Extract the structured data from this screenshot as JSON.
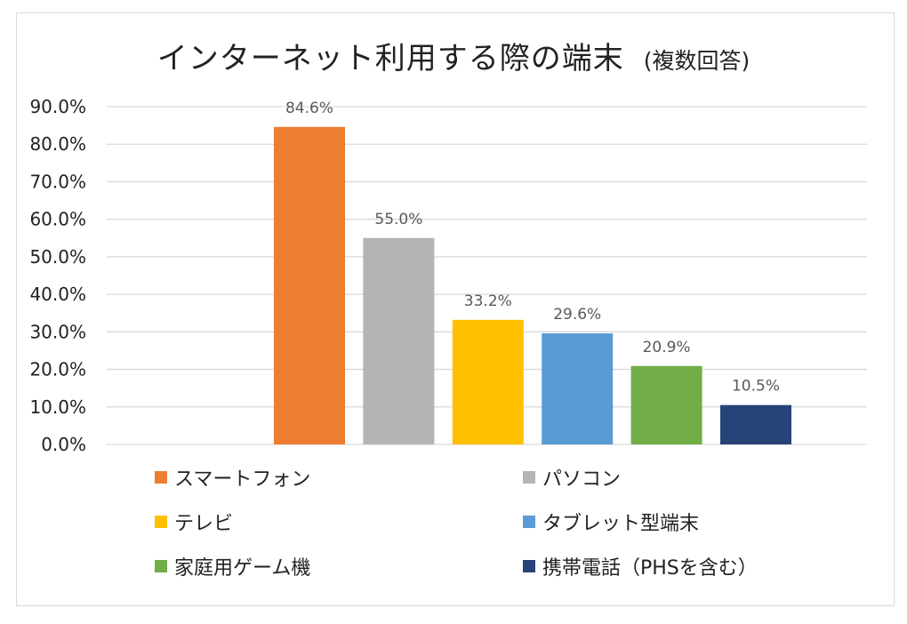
{
  "chart_data": {
    "type": "bar",
    "title": "インターネット利用する際の端末",
    "title_suffix": "(複数回答)",
    "xlabel": "",
    "ylabel": "",
    "ylim": [
      0,
      90
    ],
    "yticks": [
      "0.0%",
      "10.0%",
      "20.0%",
      "30.0%",
      "40.0%",
      "50.0%",
      "60.0%",
      "70.0%",
      "80.0%",
      "90.0%"
    ],
    "grid": true,
    "legend_position": "bottom",
    "series": [
      {
        "name": "スマートフォン",
        "value": 84.6,
        "label": "84.6%",
        "color": "#ED7D31"
      },
      {
        "name": "パソコン",
        "value": 55.0,
        "label": "55.0%",
        "color": "#B4B4B4"
      },
      {
        "name": "テレビ",
        "value": 33.2,
        "label": "33.2%",
        "color": "#FFC000"
      },
      {
        "name": "タブレット型端末",
        "value": 29.6,
        "label": "29.6%",
        "color": "#5B9BD5"
      },
      {
        "name": "家庭用ゲーム機",
        "value": 20.9,
        "label": "20.9%",
        "color": "#70AD47"
      },
      {
        "name": "携帯電話（PHSを含む）",
        "value": 10.5,
        "label": "10.5%",
        "color": "#264478"
      }
    ]
  }
}
